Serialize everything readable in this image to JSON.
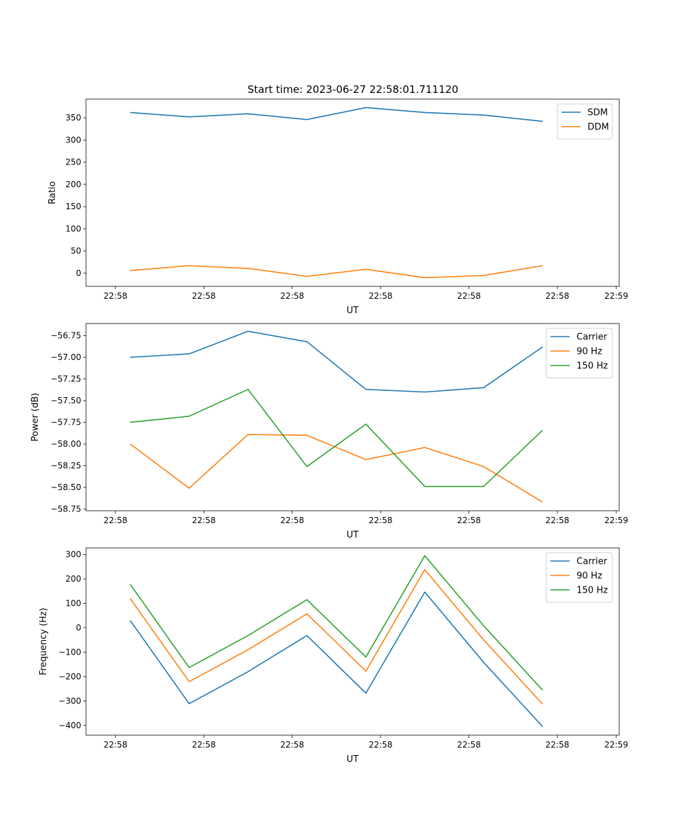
{
  "figure_title": "Start time: 2023-06-27 22:58:01.711120",
  "chart_data": [
    {
      "type": "line",
      "title": "Start time: 2023-06-27 22:58:01.711120",
      "xlabel": "UT",
      "ylabel": "Ratio",
      "x": [
        1,
        2,
        3,
        4,
        5,
        6,
        7,
        8
      ],
      "xlim": [
        0.25,
        9.3
      ],
      "x_ticks": [
        0.75,
        2.25,
        3.75,
        5.25,
        6.75,
        8.25,
        9.25
      ],
      "x_tick_labels": [
        "22:58",
        "22:58",
        "22:58",
        "22:58",
        "22:58",
        "22:58",
        "22:59"
      ],
      "ylim": [
        -29.5,
        392
      ],
      "y_ticks": [
        0,
        50,
        100,
        150,
        200,
        250,
        300,
        350
      ],
      "y_tick_labels": [
        "0",
        "50",
        "100",
        "150",
        "200",
        "250",
        "300",
        "350"
      ],
      "legend": "top-right",
      "grid": false,
      "series": [
        {
          "name": "SDM",
          "color": "#1f77b4",
          "values": [
            362,
            352,
            359,
            346,
            373,
            362,
            356,
            342
          ]
        },
        {
          "name": "DDM",
          "color": "#ff7f0e",
          "values": [
            6,
            17,
            11,
            -7,
            9,
            -10,
            -5,
            17
          ]
        }
      ]
    },
    {
      "type": "line",
      "xlabel": "UT",
      "ylabel": "Power (dB)",
      "x": [
        1,
        2,
        3,
        4,
        5,
        6,
        7,
        8
      ],
      "xlim": [
        0.25,
        9.3
      ],
      "x_ticks": [
        0.75,
        2.25,
        3.75,
        5.25,
        6.75,
        8.25,
        9.25
      ],
      "x_tick_labels": [
        "22:58",
        "22:58",
        "22:58",
        "22:58",
        "22:58",
        "22:58",
        "22:59"
      ],
      "ylim": [
        -58.77,
        -56.61
      ],
      "y_ticks": [
        -56.75,
        -57.0,
        -57.25,
        -57.5,
        -57.75,
        -58.0,
        -58.25,
        -58.5,
        -58.75
      ],
      "y_tick_labels": [
        "−56.75",
        "−57.00",
        "−57.25",
        "−57.50",
        "−57.75",
        "−58.00",
        "−58.25",
        "−58.50",
        "−58.75"
      ],
      "legend": "top-right",
      "grid": false,
      "series": [
        {
          "name": "Carrier",
          "color": "#1f77b4",
          "values": [
            -57.0,
            -56.96,
            -56.7,
            -56.82,
            -57.37,
            -57.4,
            -57.35,
            -56.88
          ]
        },
        {
          "name": "90 Hz",
          "color": "#ff7f0e",
          "values": [
            -58.0,
            -58.51,
            -57.89,
            -57.9,
            -58.18,
            -58.04,
            -58.26,
            -58.67
          ]
        },
        {
          "name": "150 Hz",
          "color": "#2ca02c",
          "values": [
            -57.75,
            -57.68,
            -57.37,
            -58.26,
            -57.77,
            -58.49,
            -58.49,
            -57.84
          ]
        }
      ]
    },
    {
      "type": "line",
      "xlabel": "UT",
      "ylabel": "Frequency (Hz)",
      "x": [
        1,
        2,
        3,
        4,
        5,
        6,
        7,
        8
      ],
      "xlim": [
        0.25,
        9.3
      ],
      "x_ticks": [
        0.75,
        2.25,
        3.75,
        5.25,
        6.75,
        8.25,
        9.25
      ],
      "x_tick_labels": [
        "22:58",
        "22:58",
        "22:58",
        "22:58",
        "22:58",
        "22:58",
        "22:59"
      ],
      "ylim": [
        -440,
        327
      ],
      "y_ticks": [
        300,
        200,
        100,
        0,
        -100,
        -200,
        -300,
        -400
      ],
      "y_tick_labels": [
        "300",
        "200",
        "100",
        "0",
        "−100",
        "−200",
        "−300",
        "−400"
      ],
      "legend": "top-right",
      "grid": false,
      "series": [
        {
          "name": "Carrier",
          "color": "#1f77b4",
          "values": [
            30,
            -311,
            -180,
            -32,
            -268,
            146,
            -142,
            -405
          ]
        },
        {
          "name": "90 Hz",
          "color": "#ff7f0e",
          "values": [
            120,
            -221,
            -90,
            57,
            -178,
            238,
            -50,
            -313
          ]
        },
        {
          "name": "150 Hz",
          "color": "#2ca02c",
          "values": [
            178,
            -163,
            -32,
            115,
            -120,
            295,
            8,
            -256
          ]
        }
      ]
    }
  ]
}
